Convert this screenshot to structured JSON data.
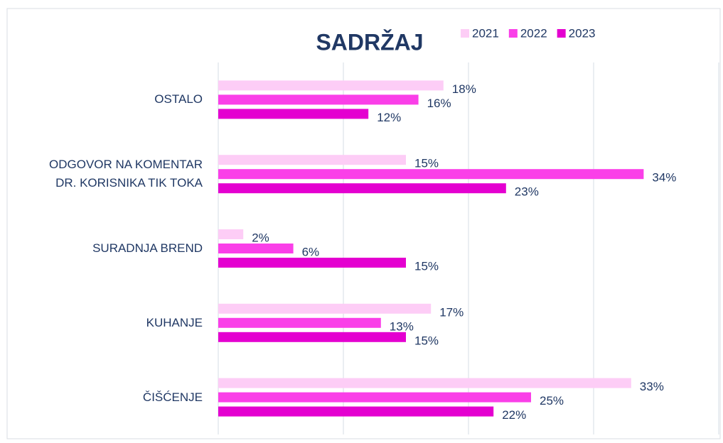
{
  "chart_data": {
    "type": "bar",
    "orientation": "horizontal",
    "title": "SADRŽAJ",
    "categories": [
      "OSTALO",
      "ODGOVOR NA KOMENTAR\nDR. KORISNIKA TIK TOKA",
      "SURADNJA BREND",
      "KUHANJE",
      "ČIŠĆENJE"
    ],
    "series": [
      {
        "name": "2021",
        "color": "#fdcdf6",
        "values": [
          18,
          15,
          2,
          17,
          33
        ],
        "value_labels": [
          "18%",
          "15%",
          "2%",
          "17%",
          "33%"
        ]
      },
      {
        "name": "2022",
        "color": "#fa3fe8",
        "values": [
          16,
          34,
          6,
          13,
          25
        ],
        "value_labels": [
          "16%",
          "34%",
          "6%",
          "13%",
          "25%"
        ]
      },
      {
        "name": "2023",
        "color": "#e400d0",
        "values": [
          12,
          23,
          15,
          15,
          22
        ],
        "value_labels": [
          "12%",
          "23%",
          "15%",
          "15%",
          "22%"
        ]
      }
    ],
    "xlim": [
      0,
      40
    ],
    "xticks": [
      0,
      10,
      20,
      30,
      40
    ],
    "grid": true,
    "legend": "top-right"
  }
}
